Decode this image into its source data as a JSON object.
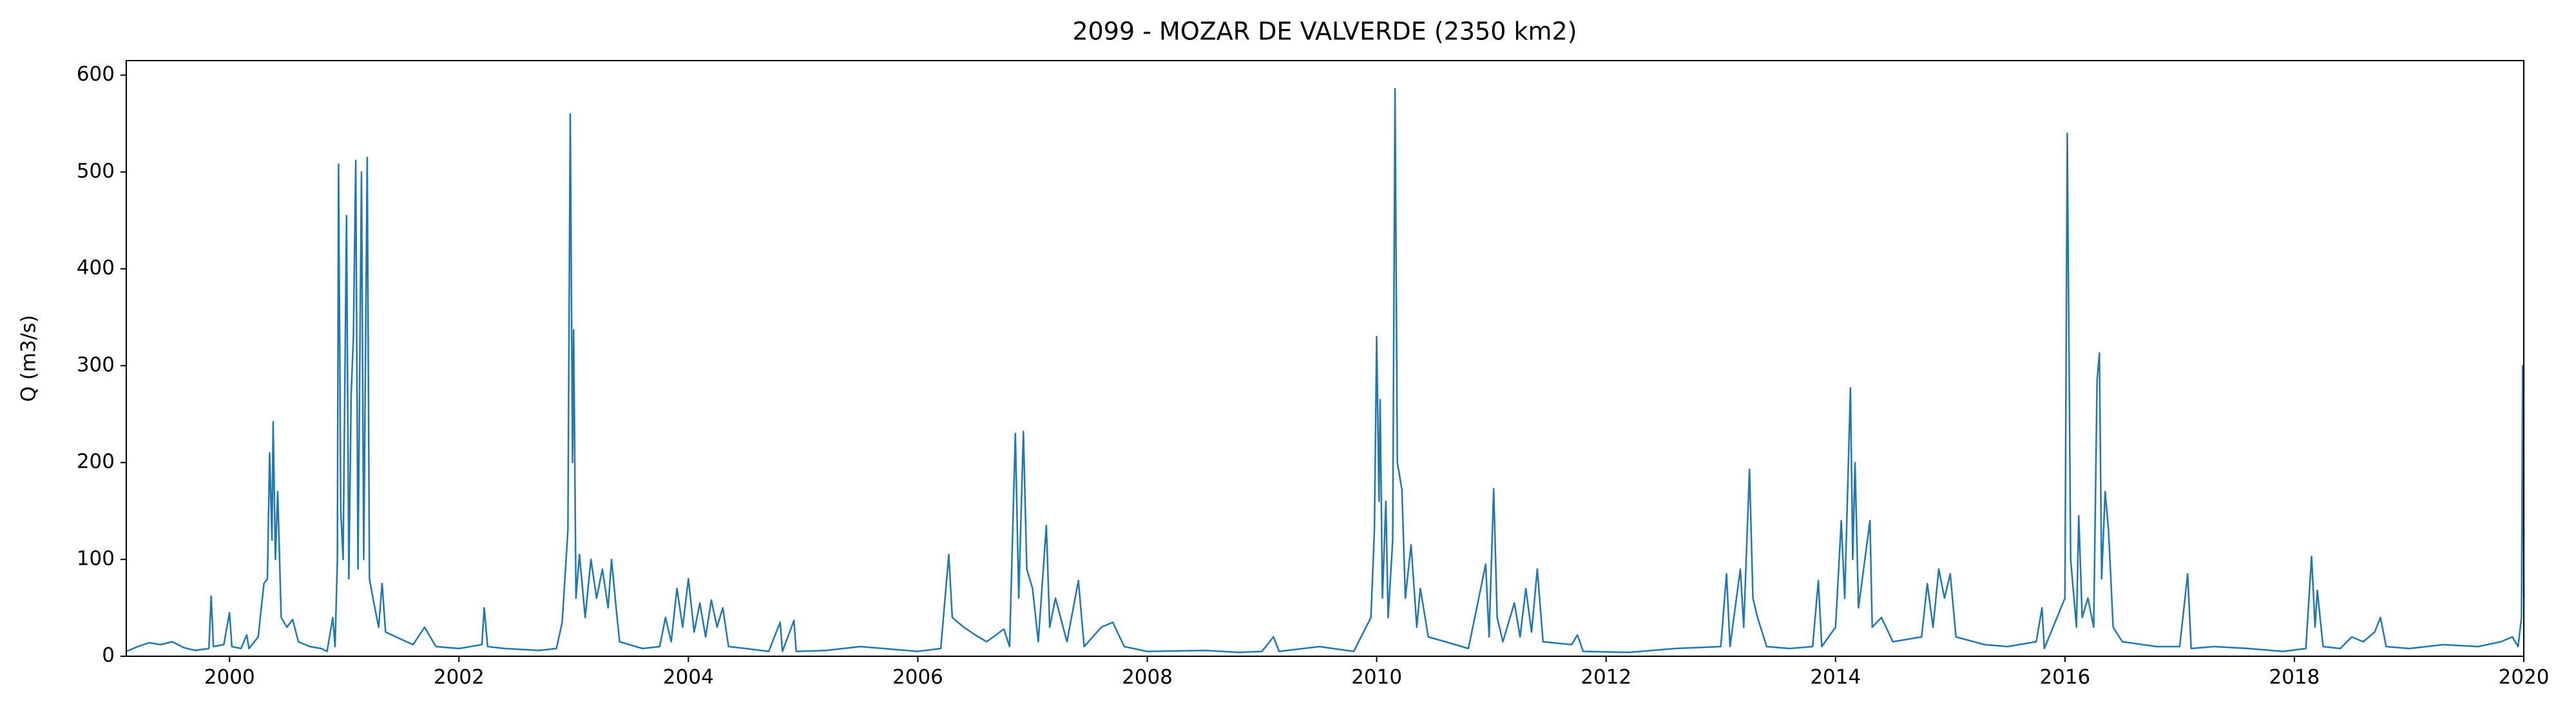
{
  "chart_data": {
    "type": "line",
    "title": "2099 - MOZAR DE VALVERDE (2350 km2)",
    "ylabel": "Q (m3/s)",
    "color": "#1f77b4",
    "xlim": [
      1999.1,
      2020
    ],
    "xticks": [
      2000,
      2002,
      2004,
      2006,
      2008,
      2010,
      2012,
      2014,
      2016,
      2018,
      2020
    ],
    "ylim": [
      0,
      615
    ],
    "yticks": [
      0,
      100,
      200,
      300,
      400,
      500,
      600
    ],
    "x": [
      1999.1,
      1999.2,
      1999.3,
      1999.4,
      1999.5,
      1999.6,
      1999.7,
      1999.82,
      1999.84,
      1999.86,
      1999.95,
      2000.0,
      2000.02,
      2000.1,
      2000.15,
      2000.17,
      2000.25,
      2000.3,
      2000.33,
      2000.35,
      2000.37,
      2000.38,
      2000.4,
      2000.42,
      2000.45,
      2000.5,
      2000.55,
      2000.6,
      2000.7,
      2000.8,
      2000.85,
      2000.9,
      2000.92,
      2000.94,
      2000.95,
      2000.97,
      2000.99,
      2001.02,
      2001.04,
      2001.06,
      2001.08,
      2001.1,
      2001.12,
      2001.15,
      2001.17,
      2001.2,
      2001.22,
      2001.25,
      2001.3,
      2001.33,
      2001.36,
      2001.45,
      2001.6,
      2001.7,
      2001.8,
      2002.0,
      2002.2,
      2002.22,
      2002.25,
      2002.4,
      2002.7,
      2002.85,
      2002.9,
      2002.95,
      2002.97,
      2002.99,
      2003.0,
      2003.02,
      2003.05,
      2003.1,
      2003.15,
      2003.2,
      2003.25,
      2003.3,
      2003.33,
      2003.37,
      2003.4,
      2003.6,
      2003.75,
      2003.8,
      2003.85,
      2003.9,
      2003.95,
      2004.0,
      2004.05,
      2004.1,
      2004.15,
      2004.2,
      2004.25,
      2004.3,
      2004.35,
      2004.5,
      2004.7,
      2004.8,
      2004.82,
      2004.92,
      2004.94,
      2005.2,
      2005.5,
      2005.8,
      2006.0,
      2006.2,
      2006.27,
      2006.3,
      2006.4,
      2006.5,
      2006.6,
      2006.75,
      2006.8,
      2006.85,
      2006.88,
      2006.92,
      2006.95,
      2007.0,
      2007.05,
      2007.12,
      2007.15,
      2007.2,
      2007.3,
      2007.4,
      2007.45,
      2007.6,
      2007.7,
      2007.8,
      2008.0,
      2008.5,
      2008.8,
      2009.0,
      2009.1,
      2009.15,
      2009.5,
      2009.8,
      2009.95,
      2009.98,
      2010.0,
      2010.02,
      2010.03,
      2010.05,
      2010.08,
      2010.1,
      2010.14,
      2010.16,
      2010.18,
      2010.22,
      2010.25,
      2010.3,
      2010.35,
      2010.38,
      2010.45,
      2010.6,
      2010.8,
      2010.95,
      2010.98,
      2011.02,
      2011.05,
      2011.1,
      2011.2,
      2011.25,
      2011.3,
      2011.35,
      2011.4,
      2011.45,
      2011.7,
      2011.75,
      2011.8,
      2012.2,
      2012.6,
      2013.0,
      2013.05,
      2013.08,
      2013.17,
      2013.2,
      2013.25,
      2013.28,
      2013.32,
      2013.4,
      2013.6,
      2013.8,
      2013.85,
      2013.88,
      2014.0,
      2014.05,
      2014.08,
      2014.13,
      2014.15,
      2014.17,
      2014.2,
      2014.3,
      2014.32,
      2014.4,
      2014.5,
      2014.75,
      2014.8,
      2014.85,
      2014.9,
      2014.95,
      2015.0,
      2015.05,
      2015.3,
      2015.5,
      2015.75,
      2015.8,
      2015.82,
      2016.0,
      2016.02,
      2016.05,
      2016.1,
      2016.12,
      2016.15,
      2016.2,
      2016.25,
      2016.28,
      2016.3,
      2016.32,
      2016.35,
      2016.38,
      2016.42,
      2016.5,
      2016.8,
      2017.0,
      2017.07,
      2017.1,
      2017.3,
      2017.6,
      2017.9,
      2018.1,
      2018.15,
      2018.18,
      2018.2,
      2018.25,
      2018.4,
      2018.5,
      2018.6,
      2018.7,
      2018.75,
      2018.8,
      2019.0,
      2019.3,
      2019.6,
      2019.8,
      2019.9,
      2019.95,
      2019.98,
      2019.99,
      2020.0
    ],
    "values": [
      5,
      10,
      14,
      12,
      15,
      9,
      6,
      8,
      62,
      10,
      12,
      45,
      10,
      8,
      22,
      8,
      20,
      75,
      80,
      210,
      120,
      242,
      100,
      170,
      40,
      30,
      38,
      15,
      10,
      8,
      5,
      40,
      10,
      100,
      508,
      150,
      100,
      455,
      80,
      270,
      330,
      512,
      90,
      500,
      100,
      515,
      80,
      60,
      30,
      75,
      25,
      20,
      12,
      30,
      10,
      8,
      12,
      50,
      10,
      8,
      6,
      8,
      35,
      130,
      560,
      200,
      337,
      60,
      105,
      40,
      100,
      60,
      90,
      50,
      100,
      50,
      15,
      8,
      10,
      40,
      15,
      70,
      30,
      80,
      25,
      55,
      20,
      58,
      30,
      50,
      10,
      8,
      5,
      35,
      5,
      37,
      5,
      6,
      10,
      7,
      5,
      8,
      105,
      40,
      30,
      22,
      15,
      28,
      10,
      230,
      60,
      232,
      90,
      70,
      15,
      135,
      30,
      60,
      15,
      78,
      10,
      30,
      35,
      10,
      5,
      6,
      4,
      5,
      20,
      5,
      10,
      5,
      40,
      130,
      330,
      160,
      265,
      60,
      160,
      40,
      120,
      586,
      200,
      172,
      60,
      115,
      30,
      70,
      20,
      15,
      8,
      95,
      20,
      173,
      40,
      15,
      55,
      20,
      70,
      25,
      90,
      15,
      12,
      22,
      5,
      4,
      8,
      10,
      85,
      10,
      90,
      30,
      193,
      60,
      40,
      10,
      8,
      10,
      78,
      10,
      30,
      140,
      60,
      277,
      100,
      200,
      50,
      140,
      30,
      40,
      15,
      20,
      75,
      30,
      90,
      60,
      85,
      20,
      12,
      10,
      15,
      50,
      8,
      60,
      540,
      100,
      30,
      145,
      40,
      60,
      30,
      285,
      313,
      80,
      170,
      130,
      30,
      15,
      10,
      10,
      85,
      8,
      10,
      8,
      5,
      8,
      103,
      30,
      68,
      10,
      8,
      20,
      15,
      25,
      40,
      10,
      8,
      12,
      10,
      15,
      20,
      10,
      40,
      300,
      60
    ]
  }
}
